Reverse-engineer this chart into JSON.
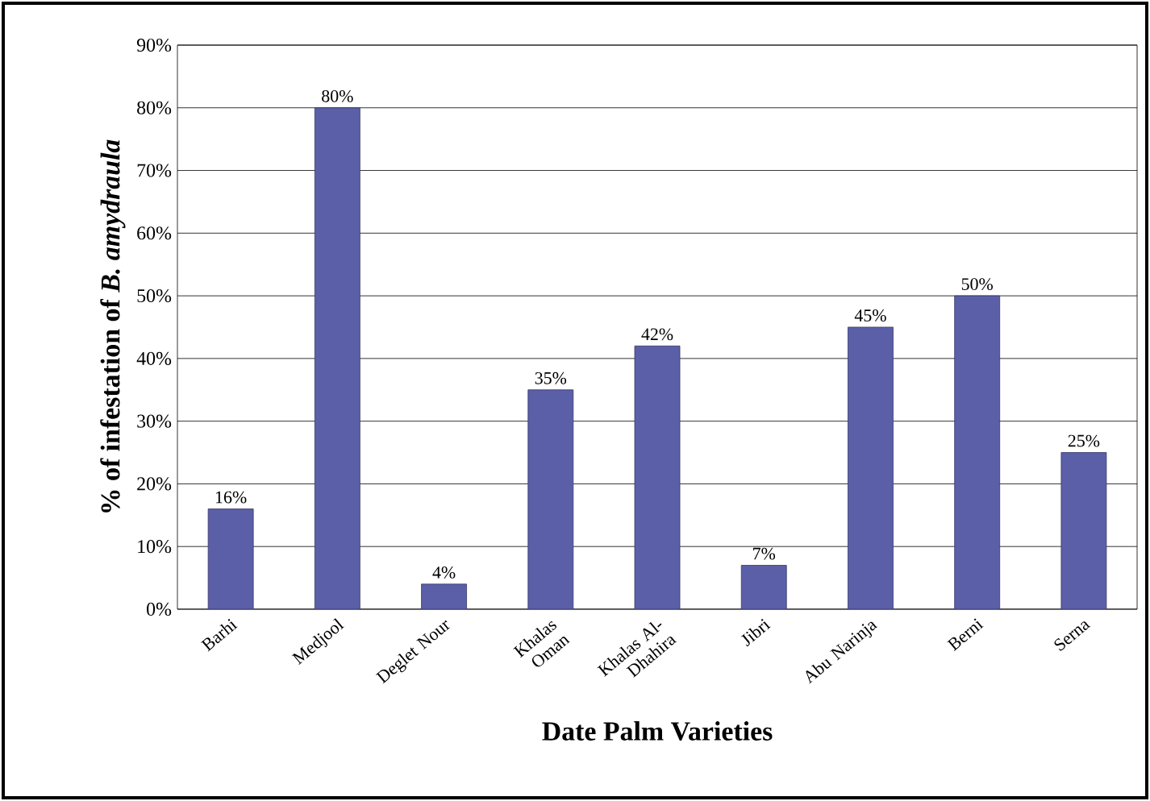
{
  "chart_data": {
    "type": "bar",
    "xlabel": "Date Palm Varieties",
    "ylabel": "% of infestation of *B. amydraula*",
    "categories": [
      "Barhi",
      "Medjool",
      "Deglet Nour",
      "Khalas Oman",
      "Khalas Al-Dhahira",
      "Jibri",
      "Abu Narinja",
      "Berni",
      "Serna"
    ],
    "values": [
      16,
      80,
      4,
      35,
      42,
      7,
      45,
      50,
      25
    ],
    "value_labels": [
      "16%",
      "80%",
      "4%",
      "35%",
      "42%",
      "7%",
      "45%",
      "50%",
      "25%"
    ],
    "color": "#5b5fa8",
    "ylim": [
      0,
      90
    ],
    "yticks": [
      {
        "value": 0,
        "label": "0%"
      },
      {
        "value": 10,
        "label": "10%"
      },
      {
        "value": 20,
        "label": "20%"
      },
      {
        "value": 30,
        "label": "30%"
      },
      {
        "value": 40,
        "label": "40%"
      },
      {
        "value": 50,
        "label": "50%"
      },
      {
        "value": 60,
        "label": "60%"
      },
      {
        "value": 70,
        "label": "70%"
      },
      {
        "value": 80,
        "label": "80%"
      },
      {
        "value": 90,
        "label": "90%"
      }
    ],
    "grid": "y"
  }
}
